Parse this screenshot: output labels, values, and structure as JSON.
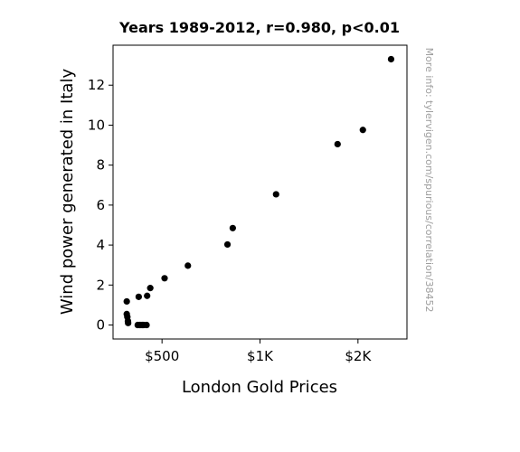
{
  "chart_data": {
    "type": "scatter",
    "title": "Years 1989-2012, r=0.980, p<0.01",
    "xlabel": "London Gold Prices",
    "ylabel": "Wind power generated in Italy",
    "side_note": "More info: tylervigen.com/spurious/correlation/38452",
    "xlim": [
      250,
      1750
    ],
    "ylim": [
      -0.7,
      14
    ],
    "x_ticks": [
      {
        "value": 500,
        "label": "$500"
      },
      {
        "value": 1000,
        "label": "$1K"
      },
      {
        "value": 1500,
        "label": "$2K"
      }
    ],
    "y_ticks": [
      {
        "value": 0,
        "label": "0"
      },
      {
        "value": 2,
        "label": "2"
      },
      {
        "value": 4,
        "label": "4"
      },
      {
        "value": 6,
        "label": "6"
      },
      {
        "value": 8,
        "label": "8"
      },
      {
        "value": 10,
        "label": "10"
      },
      {
        "value": 12,
        "label": "12"
      }
    ],
    "marker_color": "#000000",
    "points": [
      {
        "x": 320,
        "y": 1.18
      },
      {
        "x": 320,
        "y": 0.55
      },
      {
        "x": 323,
        "y": 0.4
      },
      {
        "x": 326,
        "y": 0.2
      },
      {
        "x": 327,
        "y": 0.1
      },
      {
        "x": 376,
        "y": 0.0
      },
      {
        "x": 381,
        "y": 1.41
      },
      {
        "x": 386,
        "y": 0.0
      },
      {
        "x": 393,
        "y": 0.0
      },
      {
        "x": 400,
        "y": 0.0
      },
      {
        "x": 406,
        "y": 0.0
      },
      {
        "x": 421,
        "y": 0.0
      },
      {
        "x": 424,
        "y": 1.46
      },
      {
        "x": 440,
        "y": 1.85
      },
      {
        "x": 513,
        "y": 2.34
      },
      {
        "x": 632,
        "y": 2.97
      },
      {
        "x": 834,
        "y": 4.03
      },
      {
        "x": 861,
        "y": 4.85
      },
      {
        "x": 1082,
        "y": 6.54
      },
      {
        "x": 1396,
        "y": 9.05
      },
      {
        "x": 1525,
        "y": 9.76
      },
      {
        "x": 1669,
        "y": 13.3
      }
    ]
  }
}
